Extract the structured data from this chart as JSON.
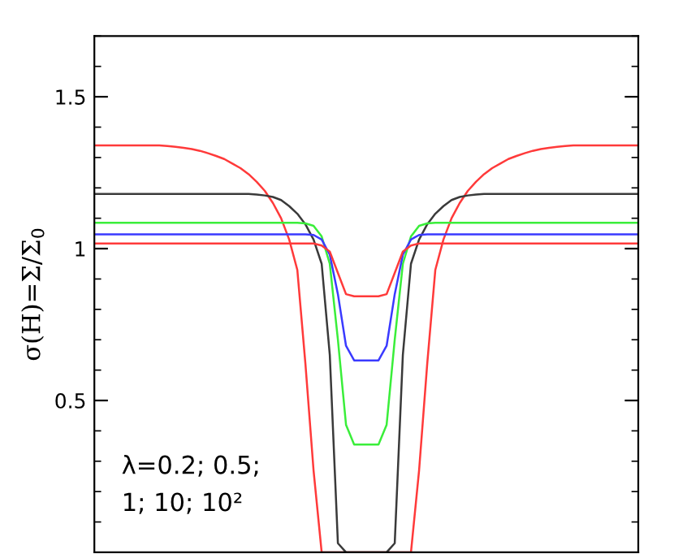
{
  "chart_data": {
    "type": "line",
    "ylabel": "σ(H)=Σ/Σ$_{0}$",
    "categories": [
      null,
      null,
      null,
      null,
      null,
      null,
      null,
      null,
      null,
      null,
      null,
      null,
      null,
      null,
      null,
      null,
      null,
      null,
      null,
      null,
      null,
      null,
      null,
      null,
      null,
      null,
      null,
      null,
      null,
      null,
      null,
      null,
      null,
      null,
      null,
      null,
      null,
      null,
      null,
      null,
      null,
      null,
      null,
      null,
      null,
      null,
      null,
      null,
      null,
      null,
      null,
      null,
      null,
      null,
      null,
      null,
      null,
      null,
      null,
      null,
      null,
      null,
      null,
      null,
      null,
      null,
      null,
      null
    ],
    "series": [
      {
        "color": "#ff3a3a",
        "values": [
          1.34,
          1.34,
          1.34,
          1.34,
          1.34,
          1.34,
          1.34,
          1.34,
          1.34,
          1.338,
          1.335,
          1.332,
          1.328,
          1.322,
          1.314,
          1.305,
          1.295,
          1.28,
          1.265,
          1.245,
          1.22,
          1.19,
          1.15,
          1.1,
          1.03,
          0.93,
          0.62,
          0.27,
          0,
          0,
          0,
          0,
          0,
          0,
          0,
          0,
          0,
          0,
          0,
          0,
          0.27,
          0.62,
          0.93,
          1.03,
          1.1,
          1.15,
          1.19,
          1.22,
          1.245,
          1.265,
          1.28,
          1.295,
          1.305,
          1.314,
          1.322,
          1.328,
          1.332,
          1.335,
          1.338,
          1.34,
          1.34,
          1.34,
          1.34,
          1.34,
          1.34,
          1.34,
          1.34,
          1.34
        ]
      },
      {
        "color": "#3a3a3a",
        "values": [
          1.18,
          1.18,
          1.18,
          1.18,
          1.18,
          1.18,
          1.18,
          1.18,
          1.18,
          1.18,
          1.18,
          1.18,
          1.18,
          1.18,
          1.18,
          1.18,
          1.18,
          1.18,
          1.18,
          1.18,
          1.178,
          1.175,
          1.17,
          1.16,
          1.14,
          1.115,
          1.08,
          1.03,
          0.95,
          0.65,
          0.03,
          0,
          0,
          0,
          0,
          0,
          0,
          0.03,
          0.65,
          0.95,
          1.03,
          1.08,
          1.115,
          1.14,
          1.16,
          1.17,
          1.175,
          1.178,
          1.18,
          1.18,
          1.18,
          1.18,
          1.18,
          1.18,
          1.18,
          1.18,
          1.18,
          1.18,
          1.18,
          1.18,
          1.18,
          1.18,
          1.18,
          1.18,
          1.18,
          1.18,
          1.18,
          1.18
        ]
      },
      {
        "color": "#3aee3a",
        "values": [
          1.085,
          1.085,
          1.085,
          1.085,
          1.085,
          1.085,
          1.085,
          1.085,
          1.085,
          1.085,
          1.085,
          1.085,
          1.085,
          1.085,
          1.085,
          1.085,
          1.085,
          1.085,
          1.085,
          1.085,
          1.085,
          1.085,
          1.085,
          1.085,
          1.085,
          1.085,
          1.083,
          1.075,
          1.04,
          0.95,
          0.7,
          0.42,
          0.355,
          0.355,
          0.355,
          0.355,
          0.42,
          0.7,
          0.95,
          1.04,
          1.075,
          1.083,
          1.085,
          1.085,
          1.085,
          1.085,
          1.085,
          1.085,
          1.085,
          1.085,
          1.085,
          1.085,
          1.085,
          1.085,
          1.085,
          1.085,
          1.085,
          1.085,
          1.085,
          1.085,
          1.085,
          1.085,
          1.085,
          1.085,
          1.085,
          1.085,
          1.085,
          1.085
        ]
      },
      {
        "color": "#3a3aff",
        "values": [
          1.047,
          1.047,
          1.047,
          1.047,
          1.047,
          1.047,
          1.047,
          1.047,
          1.047,
          1.047,
          1.047,
          1.047,
          1.047,
          1.047,
          1.047,
          1.047,
          1.047,
          1.047,
          1.047,
          1.047,
          1.047,
          1.047,
          1.047,
          1.047,
          1.047,
          1.047,
          1.047,
          1.045,
          1.03,
          0.98,
          0.85,
          0.68,
          0.632,
          0.632,
          0.632,
          0.632,
          0.68,
          0.85,
          0.98,
          1.03,
          1.045,
          1.047,
          1.047,
          1.047,
          1.047,
          1.047,
          1.047,
          1.047,
          1.047,
          1.047,
          1.047,
          1.047,
          1.047,
          1.047,
          1.047,
          1.047,
          1.047,
          1.047,
          1.047,
          1.047,
          1.047,
          1.047,
          1.047,
          1.047,
          1.047,
          1.047,
          1.047,
          1.047
        ]
      },
      {
        "color": "#ff3a3a",
        "values": [
          1.017,
          1.017,
          1.017,
          1.017,
          1.017,
          1.017,
          1.017,
          1.017,
          1.017,
          1.017,
          1.017,
          1.017,
          1.017,
          1.017,
          1.017,
          1.017,
          1.017,
          1.017,
          1.017,
          1.017,
          1.017,
          1.017,
          1.017,
          1.017,
          1.017,
          1.017,
          1.017,
          1.017,
          1.01,
          0.99,
          0.92,
          0.85,
          0.843,
          0.843,
          0.843,
          0.843,
          0.85,
          0.92,
          0.99,
          1.01,
          1.017,
          1.017,
          1.017,
          1.017,
          1.017,
          1.017,
          1.017,
          1.017,
          1.017,
          1.017,
          1.017,
          1.017,
          1.017,
          1.017,
          1.017,
          1.017,
          1.017,
          1.017,
          1.017,
          1.017,
          1.017,
          1.017,
          1.017,
          1.017,
          1.017,
          1.017,
          1.017,
          1.017
        ]
      }
    ],
    "ylim": [
      0,
      1.7
    ],
    "yticks": [
      0.5,
      1,
      1.5
    ],
    "tick_labels": "y",
    "grid": false,
    "legend": false,
    "annotations": [
      "λ=0.2; 0.5;\n1; 10; 10²"
    ]
  }
}
